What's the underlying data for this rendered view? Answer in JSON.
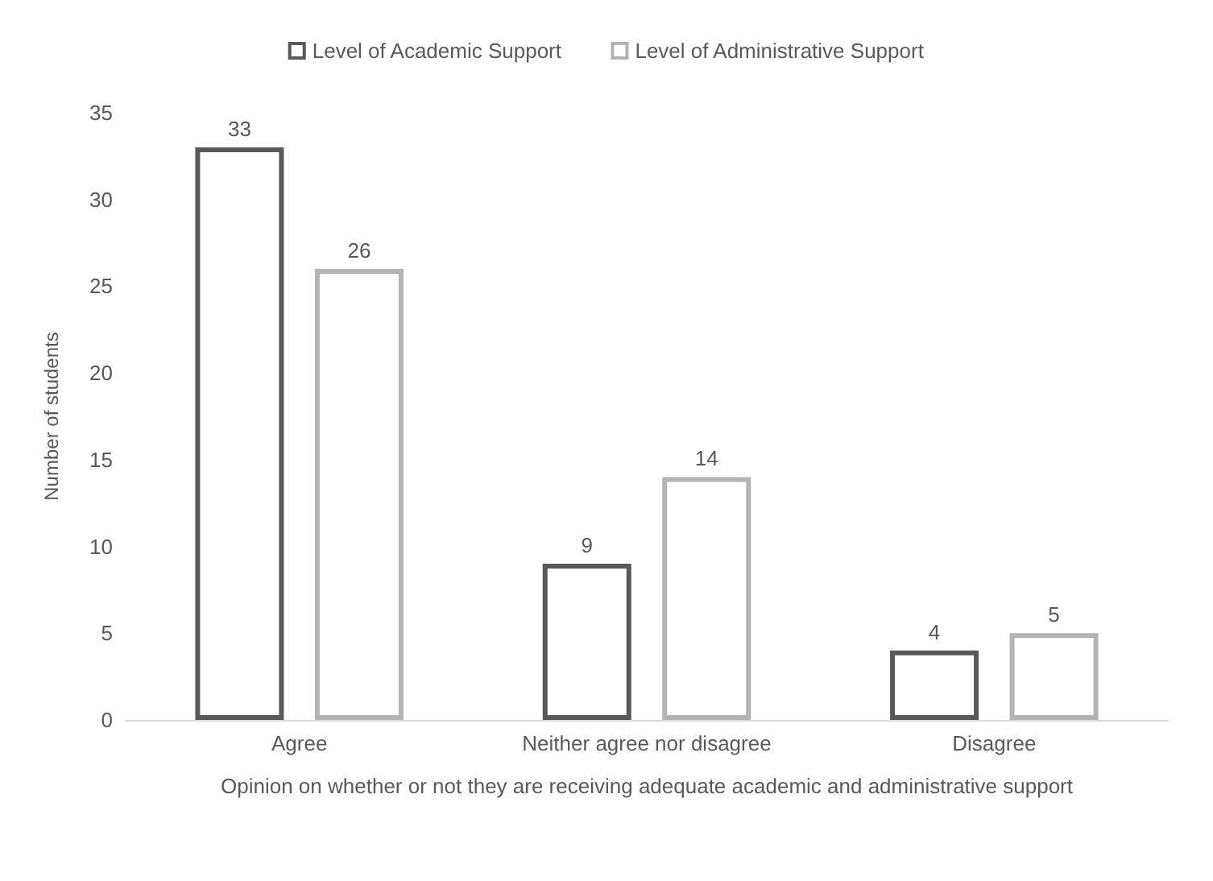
{
  "chart_data": {
    "type": "bar",
    "categories": [
      "Agree",
      "Neither agree nor disagree",
      "Disagree"
    ],
    "series": [
      {
        "name": "Level of Academic Support",
        "color": "#595959",
        "values": [
          33,
          9,
          4
        ]
      },
      {
        "name": "Level of Administrative Support",
        "color": "#b4b4b4",
        "values": [
          26,
          14,
          5
        ]
      }
    ],
    "xlabel": "Opinion on whether or not they are receiving adequate academic and administrative support",
    "ylabel": "Number of students",
    "ylim": [
      0,
      35
    ],
    "yticks": [
      0,
      5,
      10,
      15,
      20,
      25,
      30,
      35
    ],
    "grid": false,
    "legend": "top",
    "data_labels": true
  }
}
